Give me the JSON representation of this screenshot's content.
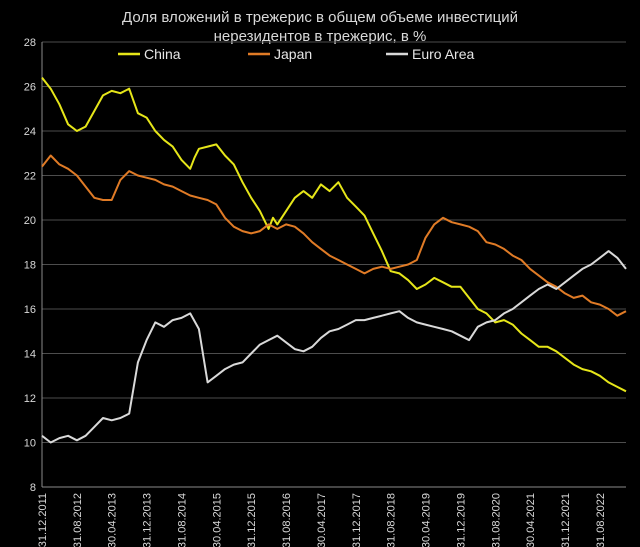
{
  "chart_data": {
    "type": "line",
    "title": "Доля вложений в трежерис в общем объеме инвестиций нерезидентов в трежерис, в %",
    "title_lines": [
      "Доля вложений в трежерис в общем объеме инвестиций",
      "нерезидентов в трежерис, в %"
    ],
    "xlabel": "",
    "ylabel": "",
    "ylim": [
      8,
      28
    ],
    "y_ticks": [
      "8",
      "10",
      "12",
      "14",
      "16",
      "18",
      "20",
      "22",
      "24",
      "26",
      "28"
    ],
    "x_range": [
      0,
      134
    ],
    "x_ticks": [
      {
        "label": "31.12.2011",
        "m": 0
      },
      {
        "label": "31.08.2012",
        "m": 8
      },
      {
        "label": "30.04.2013",
        "m": 16
      },
      {
        "label": "31.12.2013",
        "m": 24
      },
      {
        "label": "31.08.2014",
        "m": 32
      },
      {
        "label": "30.04.2015",
        "m": 40
      },
      {
        "label": "31.12.2015",
        "m": 48
      },
      {
        "label": "31.08.2016",
        "m": 56
      },
      {
        "label": "30.04.2017",
        "m": 64
      },
      {
        "label": "31.12.2017",
        "m": 72
      },
      {
        "label": "31.08.2018",
        "m": 80
      },
      {
        "label": "30.04.2019",
        "m": 88
      },
      {
        "label": "31.12.2019",
        "m": 96
      },
      {
        "label": "31.08.2020",
        "m": 104
      },
      {
        "label": "30.04.2021",
        "m": 112
      },
      {
        "label": "31.12.2021",
        "m": 120
      },
      {
        "label": "31.08.2022",
        "m": 128
      }
    ],
    "grid": "horizontal",
    "legend": "top",
    "series": [
      {
        "name": "China",
        "color": "#e6e619",
        "points": [
          [
            0,
            26.4
          ],
          [
            2,
            25.9
          ],
          [
            4,
            25.2
          ],
          [
            6,
            24.3
          ],
          [
            8,
            24.0
          ],
          [
            10,
            24.2
          ],
          [
            12,
            24.9
          ],
          [
            14,
            25.6
          ],
          [
            16,
            25.8
          ],
          [
            18,
            25.7
          ],
          [
            20,
            25.9
          ],
          [
            22,
            24.8
          ],
          [
            24,
            24.6
          ],
          [
            26,
            24.0
          ],
          [
            28,
            23.6
          ],
          [
            30,
            23.3
          ],
          [
            32,
            22.7
          ],
          [
            34,
            22.3
          ],
          [
            35,
            22.8
          ],
          [
            36,
            23.2
          ],
          [
            38,
            23.3
          ],
          [
            40,
            23.4
          ],
          [
            42,
            22.9
          ],
          [
            44,
            22.5
          ],
          [
            46,
            21.7
          ],
          [
            48,
            21.0
          ],
          [
            50,
            20.4
          ],
          [
            52,
            19.6
          ],
          [
            53,
            20.1
          ],
          [
            54,
            19.8
          ],
          [
            56,
            20.4
          ],
          [
            58,
            21.0
          ],
          [
            60,
            21.3
          ],
          [
            62,
            21.0
          ],
          [
            64,
            21.6
          ],
          [
            66,
            21.3
          ],
          [
            68,
            21.7
          ],
          [
            70,
            21.0
          ],
          [
            72,
            20.6
          ],
          [
            74,
            20.2
          ],
          [
            76,
            19.4
          ],
          [
            78,
            18.6
          ],
          [
            80,
            17.7
          ],
          [
            82,
            17.6
          ],
          [
            84,
            17.3
          ],
          [
            86,
            16.9
          ],
          [
            88,
            17.1
          ],
          [
            90,
            17.4
          ],
          [
            92,
            17.2
          ],
          [
            94,
            17.0
          ],
          [
            96,
            17.0
          ],
          [
            98,
            16.5
          ],
          [
            100,
            16.0
          ],
          [
            102,
            15.8
          ],
          [
            104,
            15.4
          ],
          [
            106,
            15.5
          ],
          [
            108,
            15.3
          ],
          [
            110,
            14.9
          ],
          [
            112,
            14.6
          ],
          [
            114,
            14.3
          ],
          [
            116,
            14.3
          ],
          [
            118,
            14.1
          ],
          [
            120,
            13.8
          ],
          [
            122,
            13.5
          ],
          [
            124,
            13.3
          ],
          [
            126,
            13.2
          ],
          [
            128,
            13.0
          ],
          [
            130,
            12.7
          ],
          [
            132,
            12.5
          ],
          [
            134,
            12.3
          ]
        ]
      },
      {
        "name": "Japan",
        "color": "#e07b26",
        "points": [
          [
            0,
            22.4
          ],
          [
            2,
            22.9
          ],
          [
            4,
            22.5
          ],
          [
            6,
            22.3
          ],
          [
            8,
            22.0
          ],
          [
            10,
            21.5
          ],
          [
            12,
            21.0
          ],
          [
            14,
            20.9
          ],
          [
            16,
            20.9
          ],
          [
            18,
            21.8
          ],
          [
            20,
            22.2
          ],
          [
            22,
            22.0
          ],
          [
            24,
            21.9
          ],
          [
            26,
            21.8
          ],
          [
            28,
            21.6
          ],
          [
            30,
            21.5
          ],
          [
            32,
            21.3
          ],
          [
            34,
            21.1
          ],
          [
            36,
            21.0
          ],
          [
            38,
            20.9
          ],
          [
            40,
            20.7
          ],
          [
            42,
            20.1
          ],
          [
            44,
            19.7
          ],
          [
            46,
            19.5
          ],
          [
            48,
            19.4
          ],
          [
            50,
            19.5
          ],
          [
            52,
            19.8
          ],
          [
            54,
            19.6
          ],
          [
            56,
            19.8
          ],
          [
            58,
            19.7
          ],
          [
            60,
            19.4
          ],
          [
            62,
            19.0
          ],
          [
            64,
            18.7
          ],
          [
            66,
            18.4
          ],
          [
            68,
            18.2
          ],
          [
            70,
            18.0
          ],
          [
            72,
            17.8
          ],
          [
            74,
            17.6
          ],
          [
            76,
            17.8
          ],
          [
            78,
            17.9
          ],
          [
            80,
            17.8
          ],
          [
            82,
            17.9
          ],
          [
            84,
            18.0
          ],
          [
            86,
            18.2
          ],
          [
            88,
            19.2
          ],
          [
            90,
            19.8
          ],
          [
            92,
            20.1
          ],
          [
            94,
            19.9
          ],
          [
            96,
            19.8
          ],
          [
            98,
            19.7
          ],
          [
            100,
            19.5
          ],
          [
            102,
            19.0
          ],
          [
            104,
            18.9
          ],
          [
            106,
            18.7
          ],
          [
            108,
            18.4
          ],
          [
            110,
            18.2
          ],
          [
            112,
            17.8
          ],
          [
            114,
            17.5
          ],
          [
            116,
            17.2
          ],
          [
            118,
            17.0
          ],
          [
            120,
            16.7
          ],
          [
            122,
            16.5
          ],
          [
            124,
            16.6
          ],
          [
            126,
            16.3
          ],
          [
            128,
            16.2
          ],
          [
            130,
            16.0
          ],
          [
            132,
            15.7
          ],
          [
            134,
            15.9
          ]
        ]
      },
      {
        "name": "Euro Area",
        "color": "#d9d9d9",
        "points": [
          [
            0,
            10.3
          ],
          [
            2,
            10.0
          ],
          [
            4,
            10.2
          ],
          [
            6,
            10.3
          ],
          [
            8,
            10.1
          ],
          [
            10,
            10.3
          ],
          [
            12,
            10.7
          ],
          [
            14,
            11.1
          ],
          [
            16,
            11.0
          ],
          [
            18,
            11.1
          ],
          [
            20,
            11.3
          ],
          [
            22,
            13.6
          ],
          [
            24,
            14.6
          ],
          [
            26,
            15.4
          ],
          [
            28,
            15.2
          ],
          [
            30,
            15.5
          ],
          [
            32,
            15.6
          ],
          [
            34,
            15.8
          ],
          [
            36,
            15.1
          ],
          [
            38,
            12.7
          ],
          [
            40,
            13.0
          ],
          [
            42,
            13.3
          ],
          [
            44,
            13.5
          ],
          [
            46,
            13.6
          ],
          [
            48,
            14.0
          ],
          [
            50,
            14.4
          ],
          [
            52,
            14.6
          ],
          [
            54,
            14.8
          ],
          [
            56,
            14.5
          ],
          [
            58,
            14.2
          ],
          [
            60,
            14.1
          ],
          [
            62,
            14.3
          ],
          [
            64,
            14.7
          ],
          [
            66,
            15.0
          ],
          [
            68,
            15.1
          ],
          [
            70,
            15.3
          ],
          [
            72,
            15.5
          ],
          [
            74,
            15.5
          ],
          [
            76,
            15.6
          ],
          [
            78,
            15.7
          ],
          [
            80,
            15.8
          ],
          [
            82,
            15.9
          ],
          [
            84,
            15.6
          ],
          [
            86,
            15.4
          ],
          [
            88,
            15.3
          ],
          [
            90,
            15.2
          ],
          [
            92,
            15.1
          ],
          [
            94,
            15.0
          ],
          [
            96,
            14.8
          ],
          [
            98,
            14.6
          ],
          [
            100,
            15.2
          ],
          [
            102,
            15.4
          ],
          [
            104,
            15.5
          ],
          [
            106,
            15.8
          ],
          [
            108,
            16.0
          ],
          [
            110,
            16.3
          ],
          [
            112,
            16.6
          ],
          [
            114,
            16.9
          ],
          [
            116,
            17.1
          ],
          [
            118,
            16.9
          ],
          [
            120,
            17.2
          ],
          [
            122,
            17.5
          ],
          [
            124,
            17.8
          ],
          [
            126,
            18.0
          ],
          [
            128,
            18.3
          ],
          [
            130,
            18.6
          ],
          [
            132,
            18.3
          ],
          [
            134,
            17.8
          ]
        ]
      }
    ]
  }
}
